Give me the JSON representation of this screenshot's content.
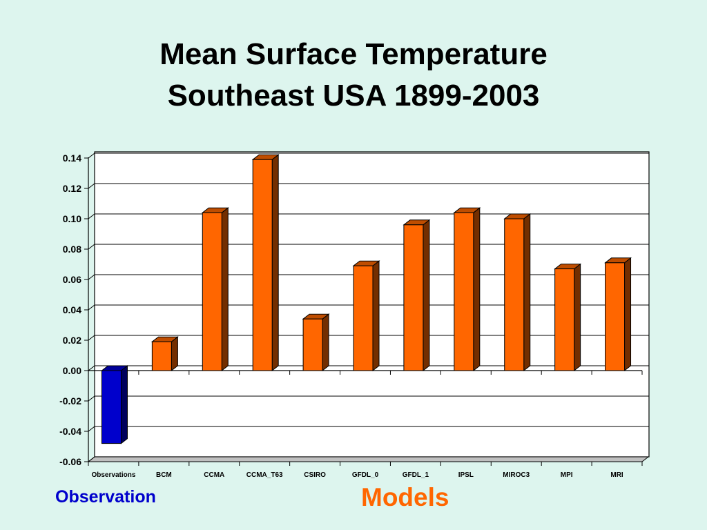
{
  "slide": {
    "title_line1": "Mean Surface Temperature",
    "title_line2": "Southeast USA 1899-2003",
    "observation_label": "Observation",
    "models_label": "Models"
  },
  "colors": {
    "background": "#ddf5ee",
    "observation_bar": "#0000cc",
    "model_bar": "#ff6600",
    "observation_label": "#0000cc",
    "models_label": "#ff6600"
  },
  "chart_data": {
    "type": "bar",
    "title": "",
    "xlabel": "",
    "ylabel": "",
    "categories": [
      "Observations",
      "BCM",
      "CCMA",
      "CCMA_T63",
      "CSIRO",
      "GFDL_0",
      "GFDL_1",
      "IPSL",
      "MIROC3",
      "MPI",
      "MRI"
    ],
    "values": [
      -0.048,
      0.019,
      0.104,
      0.139,
      0.034,
      0.069,
      0.096,
      0.104,
      0.1,
      0.067,
      0.071
    ],
    "ylim": [
      -0.06,
      0.14
    ],
    "yticks": [
      "0.14",
      "0.12",
      "0.10",
      "0.08",
      "0.06",
      "0.04",
      "0.02",
      "0.00",
      "-0.02",
      "-0.04",
      "-0.06"
    ],
    "grid": true,
    "style": "3d"
  }
}
